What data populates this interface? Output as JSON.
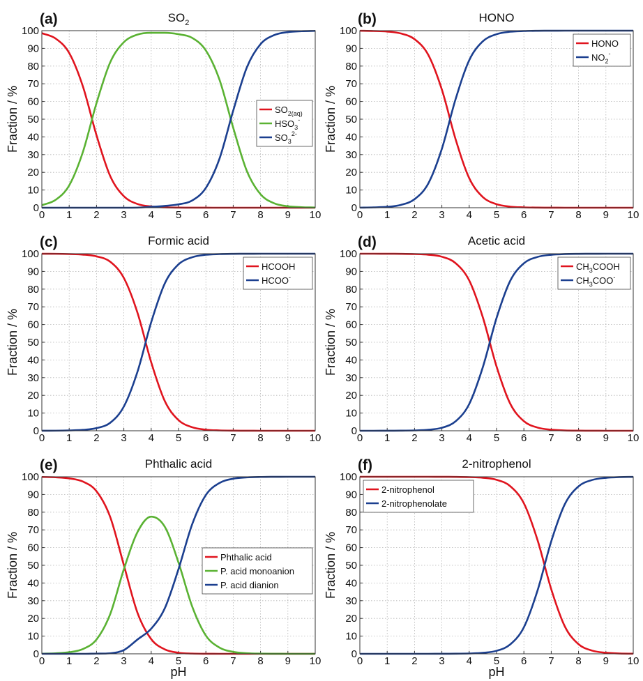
{
  "figure": {
    "xlabel": "pH",
    "ylabel": "Fraction / %"
  },
  "colors": {
    "red": "#e0141e",
    "green": "#5ab233",
    "blue": "#1b3f8f"
  },
  "chart_data": [
    {
      "type": "line",
      "letter": "(a)",
      "title": "SO",
      "title_sub": "2",
      "xlabel": "",
      "ylabel": "Fraction / %",
      "xlim": [
        0,
        10
      ],
      "ylim": [
        0,
        100
      ],
      "xticks": [
        "0",
        "1",
        "2",
        "3",
        "4",
        "5",
        "6",
        "7",
        "8",
        "9",
        "10"
      ],
      "yticks": [
        "0",
        "10",
        "20",
        "30",
        "40",
        "50",
        "60",
        "70",
        "80",
        "90",
        "100"
      ],
      "grid": true,
      "legend_position": "middle-right",
      "x": [
        0,
        0.5,
        1,
        1.5,
        2,
        2.5,
        3,
        3.5,
        4,
        4.5,
        5,
        5.5,
        6,
        6.5,
        7,
        7.5,
        8,
        8.5,
        9,
        9.5,
        10
      ],
      "series": [
        {
          "name": "SO",
          "sub": "2(aq)",
          "sup": "",
          "color": "#e0141e",
          "values": [
            98.6,
            95.6,
            87.4,
            68.6,
            40.9,
            17.9,
            6.5,
            2.1,
            0.7,
            0.2,
            0.07,
            0.02,
            0.01,
            0,
            0,
            0,
            0,
            0,
            0,
            0,
            0
          ]
        },
        {
          "name": "HSO",
          "sub": "3",
          "sup": "-",
          "color": "#5ab233",
          "values": [
            1.4,
            4.4,
            12.6,
            31.4,
            59.1,
            82.1,
            93.5,
            97.8,
            98.8,
            98.8,
            98.0,
            95.9,
            88.8,
            72.2,
            45.2,
            20.7,
            7.6,
            2.5,
            0.8,
            0.3,
            0.1
          ]
        },
        {
          "name": "SO",
          "sub": "3",
          "sup": "2-",
          "color": "#1b3f8f",
          "values": [
            0,
            0,
            0,
            0,
            0,
            0,
            0,
            0.05,
            0.5,
            1.0,
            1.9,
            4.1,
            11.2,
            27.8,
            54.8,
            79.3,
            92.4,
            97.5,
            99.2,
            99.7,
            99.9
          ]
        }
      ]
    },
    {
      "type": "line",
      "letter": "(b)",
      "title": "HONO",
      "title_sub": "",
      "xlabel": "",
      "ylabel": "Fraction / %",
      "xlim": [
        0,
        10
      ],
      "ylim": [
        0,
        100
      ],
      "xticks": [
        "0",
        "1",
        "2",
        "3",
        "4",
        "5",
        "6",
        "7",
        "8",
        "9",
        "10"
      ],
      "yticks": [
        "0",
        "10",
        "20",
        "30",
        "40",
        "50",
        "60",
        "70",
        "80",
        "90",
        "100"
      ],
      "grid": true,
      "legend_position": "top-right",
      "x": [
        0,
        0.5,
        1,
        1.5,
        2,
        2.5,
        3,
        3.5,
        4,
        4.5,
        5,
        5.5,
        6,
        6.5,
        7,
        7.5,
        8,
        8.5,
        9,
        9.5,
        10
      ],
      "series": [
        {
          "name": "HONO",
          "sub": "",
          "sup": "",
          "color": "#e0141e",
          "values": [
            99.95,
            99.8,
            99.5,
            98.4,
            95.2,
            86.4,
            66.7,
            38.8,
            16.7,
            6.0,
            2.0,
            0.6,
            0.2,
            0.06,
            0.02,
            0,
            0,
            0,
            0,
            0,
            0
          ]
        },
        {
          "name": "NO",
          "sub": "2",
          "sup": "-",
          "color": "#1b3f8f",
          "values": [
            0.05,
            0.2,
            0.5,
            1.6,
            4.8,
            13.6,
            33.3,
            61.2,
            83.3,
            94.0,
            98.0,
            99.4,
            99.8,
            99.94,
            99.98,
            100,
            100,
            100,
            100,
            100,
            100
          ]
        }
      ]
    },
    {
      "type": "line",
      "letter": "(c)",
      "title": "Formic acid",
      "title_sub": "",
      "xlabel": "",
      "ylabel": "Fraction / %",
      "xlim": [
        0,
        10
      ],
      "ylim": [
        0,
        100
      ],
      "xticks": [
        "0",
        "1",
        "2",
        "3",
        "4",
        "5",
        "6",
        "7",
        "8",
        "9",
        "10"
      ],
      "yticks": [
        "0",
        "10",
        "20",
        "30",
        "40",
        "50",
        "60",
        "70",
        "80",
        "90",
        "100"
      ],
      "grid": true,
      "legend_position": "top-right",
      "x": [
        0,
        0.5,
        1,
        1.5,
        2,
        2.5,
        3,
        3.5,
        4,
        4.5,
        5,
        5.5,
        6,
        6.5,
        7,
        7.5,
        8,
        8.5,
        9,
        9.5,
        10
      ],
      "series": [
        {
          "name": "HCOOH",
          "sub": "",
          "sup": "",
          "color": "#e0141e",
          "values": [
            99.98,
            99.95,
            99.8,
            99.5,
            98.5,
            95.5,
            86.3,
            66.6,
            38.7,
            16.7,
            6.0,
            2.0,
            0.6,
            0.2,
            0.06,
            0.02,
            0,
            0,
            0,
            0,
            0
          ]
        },
        {
          "name": "HCOO",
          "sub": "",
          "sup": "-",
          "color": "#1b3f8f",
          "values": [
            0.02,
            0.05,
            0.2,
            0.5,
            1.5,
            4.5,
            13.7,
            33.4,
            61.3,
            83.3,
            94.0,
            98.0,
            99.4,
            99.8,
            99.94,
            99.98,
            100,
            100,
            100,
            100,
            100
          ]
        }
      ]
    },
    {
      "type": "line",
      "letter": "(d)",
      "title": "Acetic acid",
      "title_sub": "",
      "xlabel": "",
      "ylabel": "Fraction / %",
      "xlim": [
        0,
        10
      ],
      "ylim": [
        0,
        100
      ],
      "xticks": [
        "0",
        "1",
        "2",
        "3",
        "4",
        "5",
        "6",
        "7",
        "8",
        "9",
        "10"
      ],
      "yticks": [
        "0",
        "10",
        "20",
        "30",
        "40",
        "50",
        "60",
        "70",
        "80",
        "90",
        "100"
      ],
      "grid": true,
      "legend_position": "top-right",
      "x": [
        0,
        0.5,
        1,
        1.5,
        2,
        2.5,
        3,
        3.5,
        4,
        4.5,
        5,
        5.5,
        6,
        6.5,
        7,
        7.5,
        8,
        8.5,
        9,
        9.5,
        10
      ],
      "series": [
        {
          "name": "CH",
          "sub": "3",
          "after": "COOH",
          "sup": "",
          "color": "#e0141e",
          "values": [
            100,
            100,
            99.98,
            99.94,
            99.8,
            99.45,
            98.3,
            94.7,
            84.9,
            64.0,
            36.3,
            15.3,
            5.4,
            1.8,
            0.6,
            0.18,
            0.06,
            0.02,
            0,
            0,
            0
          ]
        },
        {
          "name": "CH",
          "sub": "3",
          "after": "COO",
          "sup": "-",
          "color": "#1b3f8f",
          "values": [
            0,
            0,
            0.02,
            0.06,
            0.2,
            0.55,
            1.7,
            5.3,
            15.1,
            36.0,
            63.7,
            84.7,
            94.6,
            98.2,
            99.4,
            99.82,
            99.94,
            99.98,
            100,
            100,
            100
          ]
        }
      ]
    },
    {
      "type": "line",
      "letter": "(e)",
      "title": "Phthalic acid",
      "title_sub": "",
      "xlabel": "pH",
      "ylabel": "Fraction / %",
      "xlim": [
        0,
        10
      ],
      "ylim": [
        0,
        100
      ],
      "xticks": [
        "0",
        "1",
        "2",
        "3",
        "4",
        "5",
        "6",
        "7",
        "8",
        "9",
        "10"
      ],
      "yticks": [
        "0",
        "10",
        "20",
        "30",
        "40",
        "50",
        "60",
        "70",
        "80",
        "90",
        "100"
      ],
      "grid": true,
      "legend_position": "middle-right",
      "x": [
        0,
        0.5,
        1,
        1.5,
        2,
        2.5,
        3,
        3.5,
        4,
        4.5,
        5,
        5.5,
        6,
        6.5,
        7,
        7.5,
        8,
        8.5,
        9,
        9.5,
        10
      ],
      "series": [
        {
          "name": "Phthalic acid",
          "sub": "",
          "sup": "",
          "color": "#e0141e",
          "values": [
            99.9,
            99.7,
            99.1,
            97.3,
            91.8,
            77.3,
            50.1,
            23.1,
            8.3,
            2.5,
            0.6,
            0.15,
            0.03,
            0,
            0,
            0,
            0,
            0,
            0,
            0,
            0
          ]
        },
        {
          "name": "P. acid monoanion",
          "sub": "",
          "sup": "",
          "color": "#5ab233",
          "values": [
            0.1,
            0.3,
            0.9,
            2.7,
            8.1,
            22.4,
            47.8,
            68.8,
            77.5,
            71.7,
            51.5,
            26.7,
            10.3,
            3.5,
            1.1,
            0.35,
            0.1,
            0.03,
            0,
            0,
            0
          ]
        },
        {
          "name": "P. acid dianion",
          "sub": "",
          "sup": "",
          "color": "#1b3f8f",
          "values": [
            0,
            0,
            0,
            0,
            0.1,
            0.3,
            2.1,
            8.1,
            14.2,
            25.8,
            47.9,
            73.2,
            89.7,
            96.5,
            98.9,
            99.65,
            99.9,
            99.97,
            100,
            100,
            100
          ]
        }
      ]
    },
    {
      "type": "line",
      "letter": "(f)",
      "title": "2-nitrophenol",
      "title_sub": "",
      "xlabel": "pH",
      "ylabel": "Fraction / %",
      "xlim": [
        0,
        10
      ],
      "ylim": [
        0,
        100
      ],
      "xticks": [
        "0",
        "1",
        "2",
        "3",
        "4",
        "5",
        "6",
        "7",
        "8",
        "9",
        "10"
      ],
      "yticks": [
        "0",
        "10",
        "20",
        "30",
        "40",
        "50",
        "60",
        "70",
        "80",
        "90",
        "100"
      ],
      "grid": true,
      "legend_position": "top-left",
      "x": [
        0,
        0.5,
        1,
        1.5,
        2,
        2.5,
        3,
        3.5,
        4,
        4.5,
        5,
        5.5,
        6,
        6.5,
        7,
        7.5,
        8,
        8.5,
        9,
        9.5,
        10
      ],
      "series": [
        {
          "name": "2-nitrophenol",
          "sub": "",
          "sup": "",
          "color": "#e0141e",
          "values": [
            100,
            100,
            100,
            100,
            100,
            100,
            99.98,
            99.94,
            99.8,
            99.45,
            98.3,
            94.7,
            85.0,
            64.2,
            36.5,
            15.4,
            5.4,
            1.8,
            0.6,
            0.18,
            0.06
          ]
        },
        {
          "name": "2-nitrophenolate",
          "sub": "",
          "sup": "",
          "color": "#1b3f8f",
          "values": [
            0,
            0,
            0,
            0,
            0,
            0,
            0.02,
            0.06,
            0.2,
            0.55,
            1.7,
            5.3,
            15.0,
            35.8,
            63.5,
            84.6,
            94.6,
            98.2,
            99.4,
            99.82,
            99.94
          ]
        }
      ]
    }
  ]
}
